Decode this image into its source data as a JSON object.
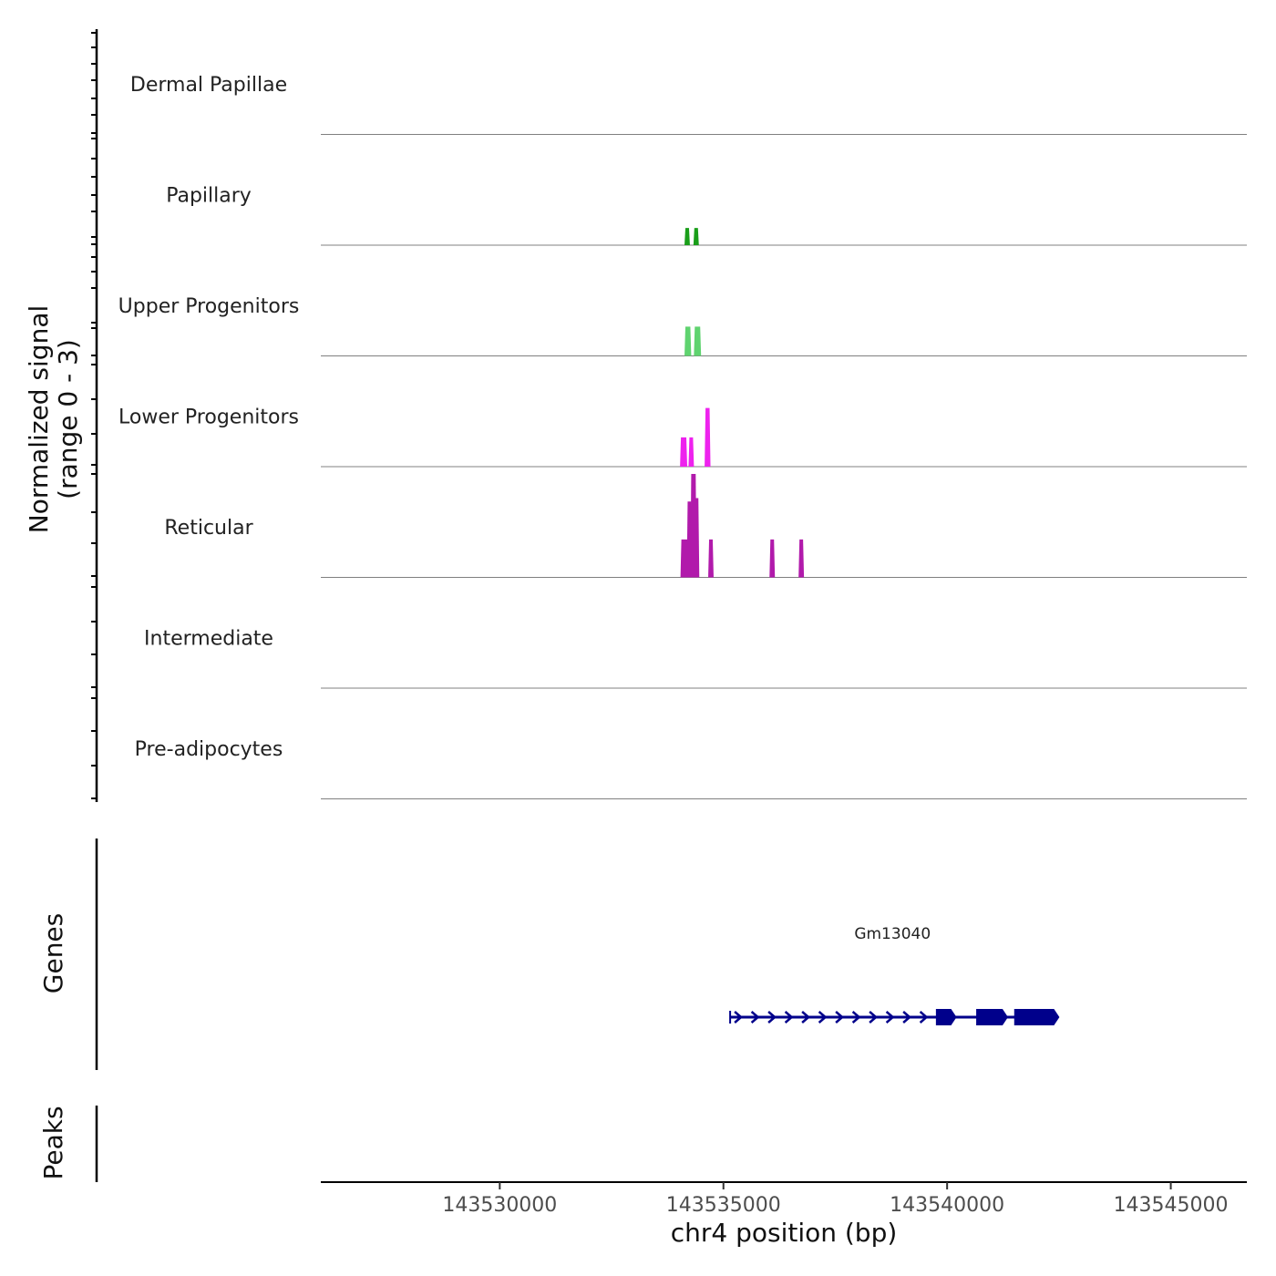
{
  "chart_data": {
    "type": "coverage-track",
    "y_axis_title_line1": "Normalized signal",
    "y_axis_title_line2": "(range 0 - 3)",
    "y_range": [
      0,
      3
    ],
    "genes_title": "Genes",
    "peaks_title": "Peaks",
    "x_axis_title": "chr4 position (bp)",
    "x_range": [
      143526000,
      143546700
    ],
    "x_ticks": [
      143530000,
      143535000,
      143540000,
      143545000
    ],
    "x_tick_labels": [
      "143530000",
      "143535000",
      "143540000",
      "143545000"
    ],
    "tracks": [
      {
        "name": "Dermal Papillae",
        "color": "#1f6f1f",
        "peaks": []
      },
      {
        "name": "Papillary",
        "color": "#1a9e1a",
        "peaks": [
          [
            143534150,
            143534230,
            0.5
          ],
          [
            143534350,
            143534430,
            0.5
          ]
        ]
      },
      {
        "name": "Upper Progenitors",
        "color": "#5fd36f",
        "peaks": [
          [
            143534150,
            143534260,
            0.85
          ],
          [
            143534360,
            143534480,
            0.85
          ]
        ]
      },
      {
        "name": "Lower Progenitors",
        "color": "#ee22ee",
        "peaks": [
          [
            143534050,
            143534170,
            0.85
          ],
          [
            143534240,
            143534320,
            0.85
          ],
          [
            143534600,
            143534690,
            1.7
          ]
        ]
      },
      {
        "name": "Reticular",
        "color": "#b11aab",
        "peaks": [
          [
            143534060,
            143534200,
            1.1
          ],
          [
            143534200,
            143534280,
            2.2
          ],
          [
            143534280,
            143534380,
            3.0
          ],
          [
            143534380,
            143534440,
            2.3
          ],
          [
            143534680,
            143534760,
            1.1
          ],
          [
            143536050,
            143536130,
            1.1
          ],
          [
            143536700,
            143536780,
            1.1
          ]
        ]
      },
      {
        "name": "Intermediate",
        "color": "#c02ba0",
        "peaks": []
      },
      {
        "name": "Pre-adipocytes",
        "color": "#8a2a8a",
        "peaks": []
      }
    ],
    "genes": [
      {
        "name": "Gm13040",
        "strand": "+",
        "start": 143535150,
        "end": 143542450,
        "exons": [
          [
            143539750,
            143540150
          ],
          [
            143540650,
            143541300
          ],
          [
            143541500,
            143542450
          ]
        ],
        "color": "#00008b"
      }
    ]
  }
}
